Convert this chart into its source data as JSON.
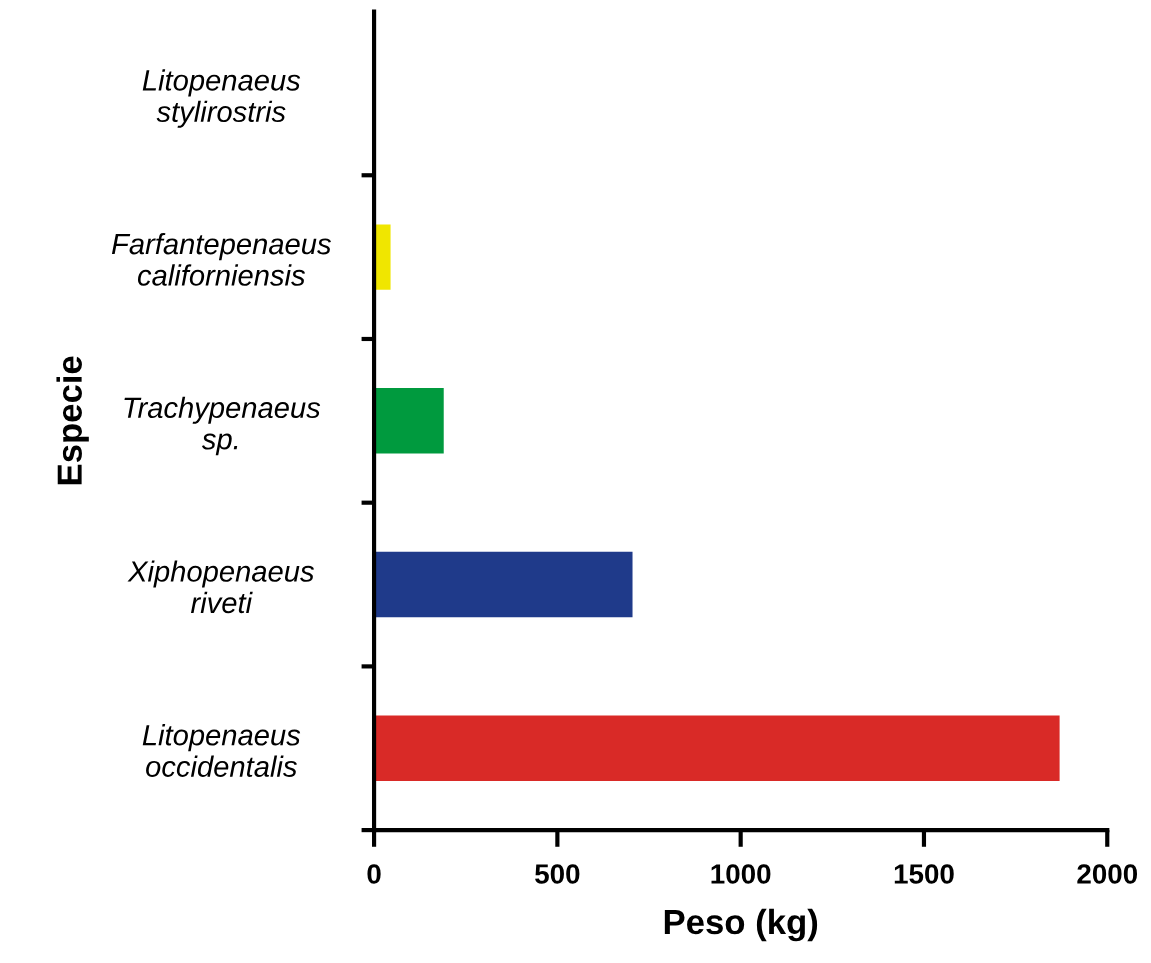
{
  "chart_data": {
    "type": "bar",
    "orientation": "horizontal",
    "xlabel": "Peso (kg)",
    "ylabel": "Especie",
    "categories": [
      "Litopenaeus\nstylirostris",
      "Farfantepenaeus\ncaliforniensis",
      "Trachypenaeus\nsp.",
      "Xiphopenaeus\nriveti",
      "Litopenaeus\noccidentalis"
    ],
    "values": [
      0,
      45,
      190,
      705,
      1870
    ],
    "colors": [
      "#ffffff",
      "#f0e600",
      "#009a3e",
      "#1f3a8a",
      "#d92a27"
    ],
    "xlim": [
      0,
      2000
    ],
    "xticks": [
      0,
      500,
      1000,
      1500,
      2000
    ],
    "grid": false,
    "legend": false
  }
}
